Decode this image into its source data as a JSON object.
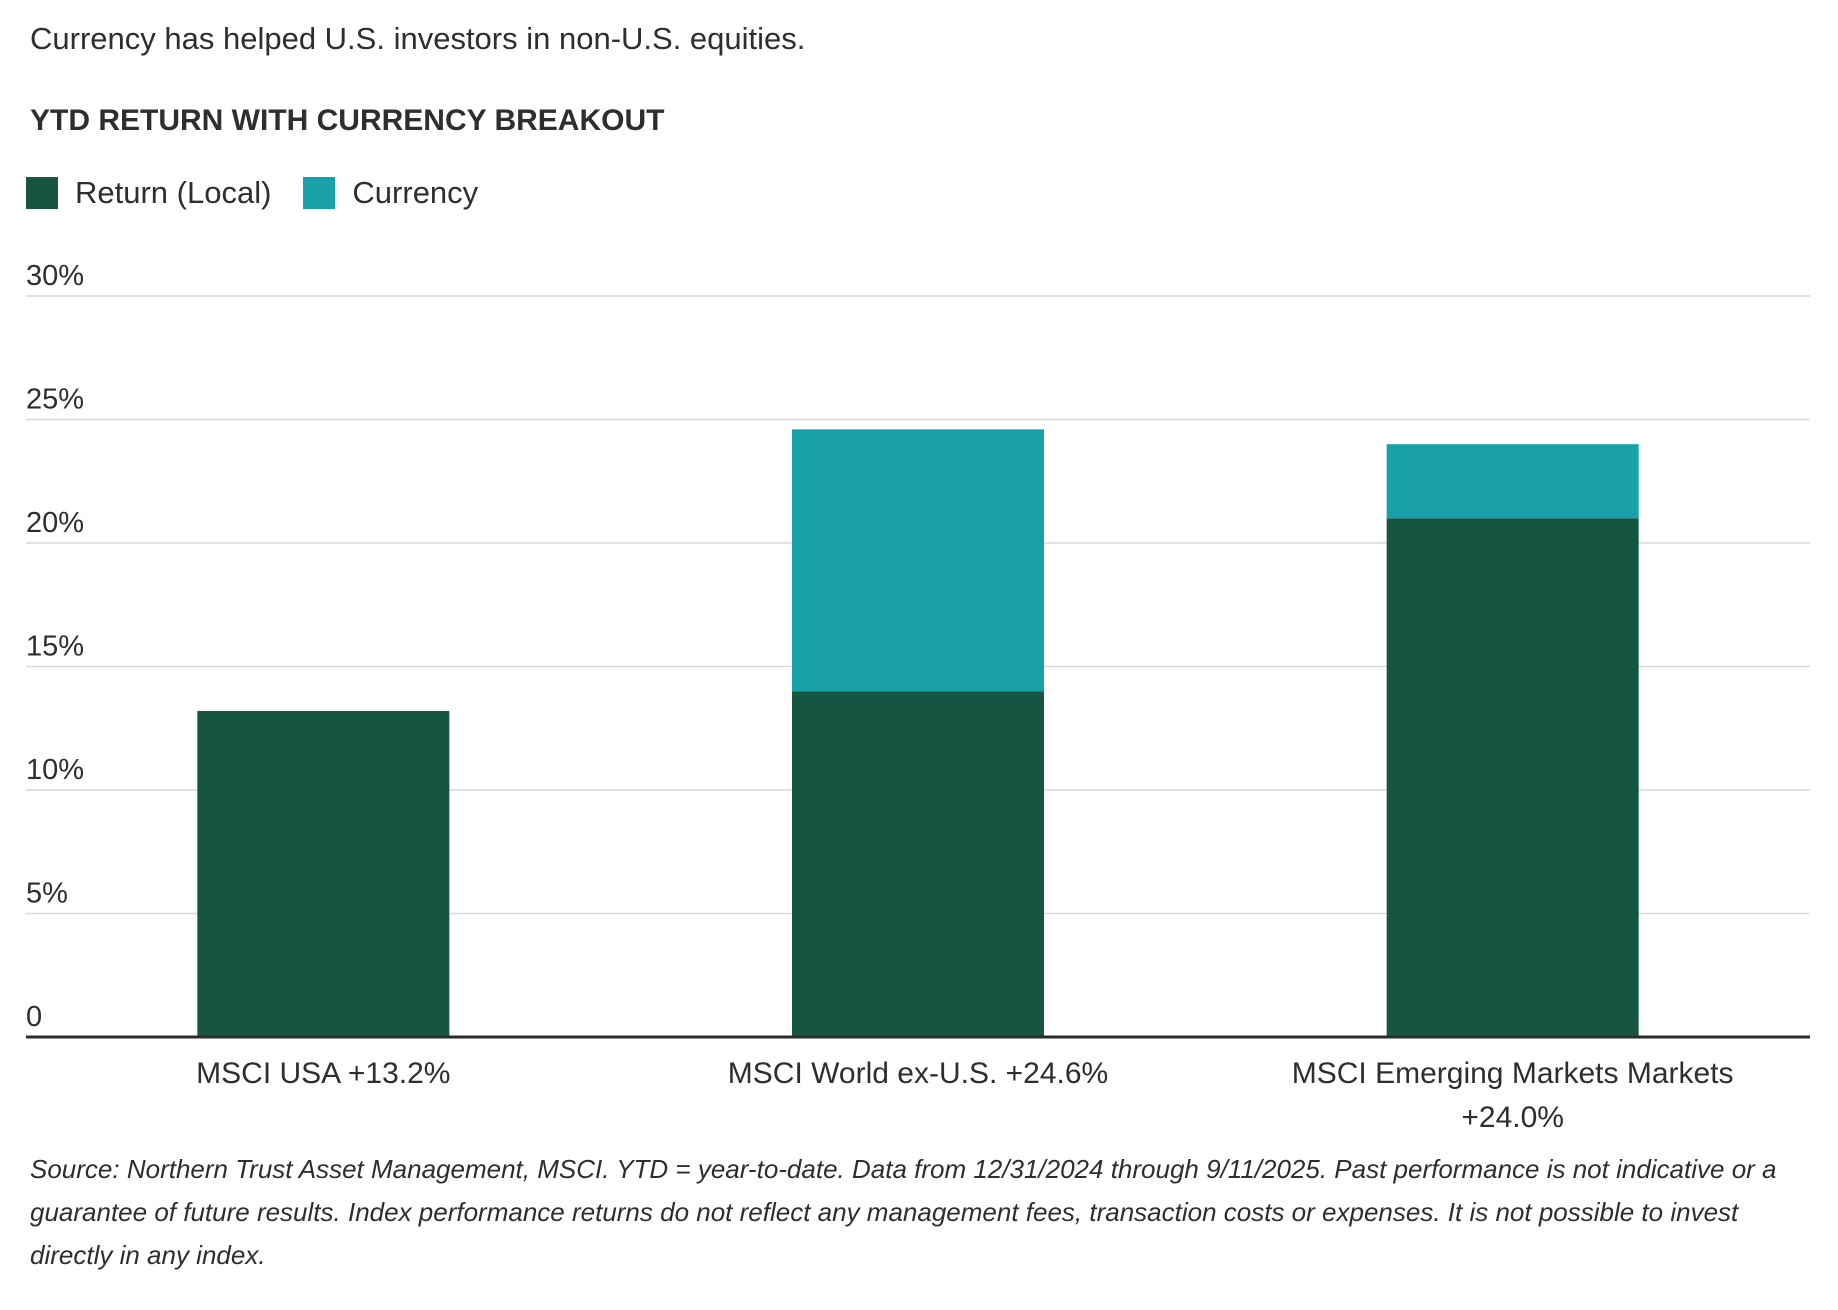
{
  "headline": "Currency has helped U.S. investors in non-U.S. equities.",
  "chart_data": {
    "type": "bar",
    "stacked": true,
    "title": "YTD RETURN WITH CURRENCY BREAKOUT",
    "categories": [
      [
        "MSCI USA +13.2%"
      ],
      [
        "MSCI World ex-U.S. +24.6%"
      ],
      [
        "MSCI Emerging Markets Markets",
        "+24.0%"
      ]
    ],
    "series": [
      {
        "name": "Return (Local)",
        "color": "#175543",
        "values": [
          13.2,
          14.0,
          21.0
        ]
      },
      {
        "name": "Currency",
        "color": "#19a1aa",
        "values": [
          0.0,
          10.6,
          3.0
        ]
      }
    ],
    "ylim": [
      0,
      30
    ],
    "yticks": [
      {
        "value": 0,
        "label": "0"
      },
      {
        "value": 5,
        "label": "5%"
      },
      {
        "value": 10,
        "label": "10%"
      },
      {
        "value": 15,
        "label": "15%"
      },
      {
        "value": 20,
        "label": "20%"
      },
      {
        "value": 25,
        "label": "25%"
      },
      {
        "value": 30,
        "label": "30%"
      }
    ],
    "grid": true,
    "legend_position": "top-left",
    "xlabel": "",
    "ylabel": ""
  },
  "footnote": "Source: Northern Trust Asset Management, MSCI. YTD = year-to-date. Data from 12/31/2024 through 9/11/2025. Past performance is not indicative or a guarantee of future results. Index performance returns do not reflect any management fees, transaction costs or expenses. It is not possible to invest directly in any index."
}
